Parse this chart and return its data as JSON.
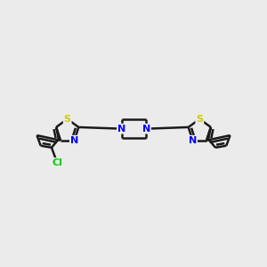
{
  "background_color": "#ebebeb",
  "bond_color": "#1a1a1a",
  "bond_width": 1.8,
  "atom_colors": {
    "S": "#cccc00",
    "N": "#0000ff",
    "Cl": "#00cc00",
    "C": "#1a1a1a"
  },
  "figsize": [
    3.0,
    3.0
  ],
  "dpi": 100,
  "xlim": [
    0,
    10
  ],
  "ylim": [
    2,
    8
  ]
}
